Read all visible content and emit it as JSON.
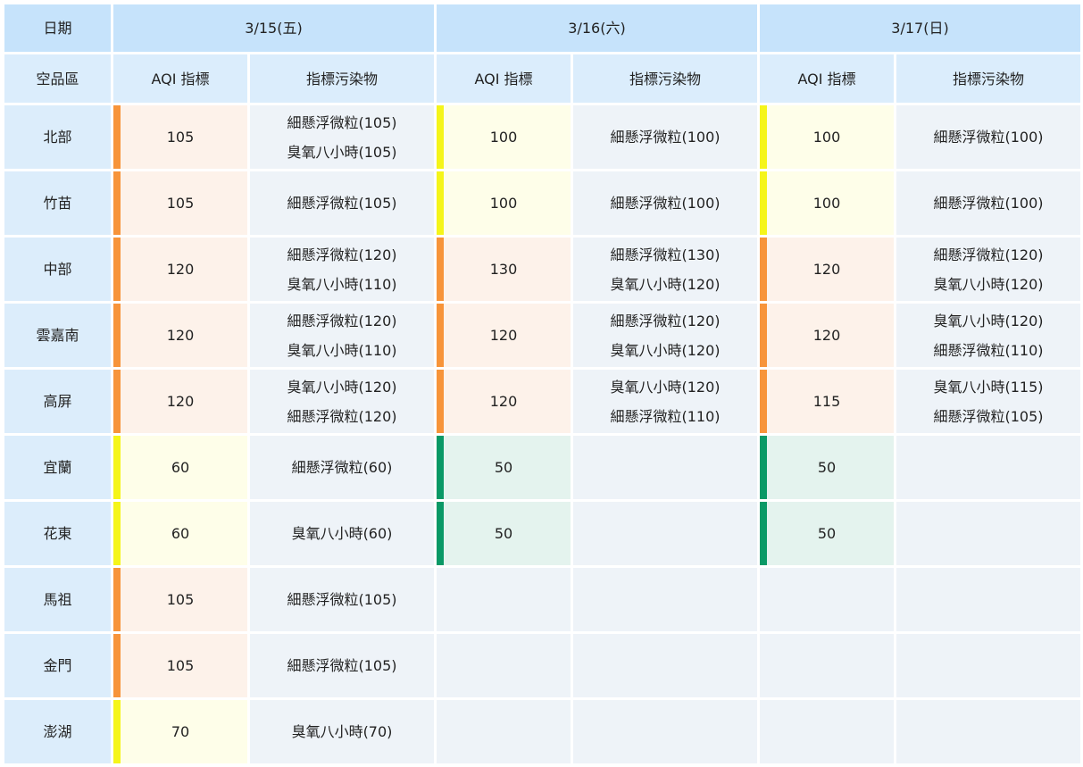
{
  "header": {
    "date_label": "日期",
    "region_label": "空品區",
    "aqi_label": "AQI 指標",
    "pollutant_label": "指標污染物",
    "dates": [
      "3/15(五)",
      "3/16(六)",
      "3/17(日)"
    ]
  },
  "levels": {
    "orange": {
      "bar": "#f7943a",
      "bg": "#fdf2ea"
    },
    "yellow": {
      "bar": "#f5f51a",
      "bg": "#fefee9"
    },
    "green": {
      "bar": "#0a9966",
      "bg": "#e4f3ee"
    }
  },
  "rows": [
    {
      "region": "北部",
      "days": [
        {
          "aqi": "105",
          "level": "orange",
          "pollutants": [
            "細懸浮微粒(105)",
            "臭氧八小時(105)"
          ]
        },
        {
          "aqi": "100",
          "level": "yellow",
          "pollutants": [
            "細懸浮微粒(100)"
          ]
        },
        {
          "aqi": "100",
          "level": "yellow",
          "pollutants": [
            "細懸浮微粒(100)"
          ]
        }
      ]
    },
    {
      "region": "竹苗",
      "days": [
        {
          "aqi": "105",
          "level": "orange",
          "pollutants": [
            "細懸浮微粒(105)"
          ]
        },
        {
          "aqi": "100",
          "level": "yellow",
          "pollutants": [
            "細懸浮微粒(100)"
          ]
        },
        {
          "aqi": "100",
          "level": "yellow",
          "pollutants": [
            "細懸浮微粒(100)"
          ]
        }
      ]
    },
    {
      "region": "中部",
      "days": [
        {
          "aqi": "120",
          "level": "orange",
          "pollutants": [
            "細懸浮微粒(120)",
            "臭氧八小時(110)"
          ]
        },
        {
          "aqi": "130",
          "level": "orange",
          "pollutants": [
            "細懸浮微粒(130)",
            "臭氧八小時(120)"
          ]
        },
        {
          "aqi": "120",
          "level": "orange",
          "pollutants": [
            "細懸浮微粒(120)",
            "臭氧八小時(120)"
          ]
        }
      ]
    },
    {
      "region": "雲嘉南",
      "days": [
        {
          "aqi": "120",
          "level": "orange",
          "pollutants": [
            "細懸浮微粒(120)",
            "臭氧八小時(110)"
          ]
        },
        {
          "aqi": "120",
          "level": "orange",
          "pollutants": [
            "細懸浮微粒(120)",
            "臭氧八小時(120)"
          ]
        },
        {
          "aqi": "120",
          "level": "orange",
          "pollutants": [
            "臭氧八小時(120)",
            "細懸浮微粒(110)"
          ]
        }
      ]
    },
    {
      "region": "高屏",
      "days": [
        {
          "aqi": "120",
          "level": "orange",
          "pollutants": [
            "臭氧八小時(120)",
            "細懸浮微粒(120)"
          ]
        },
        {
          "aqi": "120",
          "level": "orange",
          "pollutants": [
            "臭氧八小時(120)",
            "細懸浮微粒(110)"
          ]
        },
        {
          "aqi": "115",
          "level": "orange",
          "pollutants": [
            "臭氧八小時(115)",
            "細懸浮微粒(105)"
          ]
        }
      ]
    },
    {
      "region": "宜蘭",
      "days": [
        {
          "aqi": "60",
          "level": "yellow",
          "pollutants": [
            "細懸浮微粒(60)"
          ]
        },
        {
          "aqi": "50",
          "level": "green",
          "pollutants": []
        },
        {
          "aqi": "50",
          "level": "green",
          "pollutants": []
        }
      ]
    },
    {
      "region": "花東",
      "days": [
        {
          "aqi": "60",
          "level": "yellow",
          "pollutants": [
            "臭氧八小時(60)"
          ]
        },
        {
          "aqi": "50",
          "level": "green",
          "pollutants": []
        },
        {
          "aqi": "50",
          "level": "green",
          "pollutants": []
        }
      ]
    },
    {
      "region": "馬祖",
      "days": [
        {
          "aqi": "105",
          "level": "orange",
          "pollutants": [
            "細懸浮微粒(105)"
          ]
        },
        null,
        null
      ]
    },
    {
      "region": "金門",
      "days": [
        {
          "aqi": "105",
          "level": "orange",
          "pollutants": [
            "細懸浮微粒(105)"
          ]
        },
        null,
        null
      ]
    },
    {
      "region": "澎湖",
      "days": [
        {
          "aqi": "70",
          "level": "yellow",
          "pollutants": [
            "臭氧八小時(70)"
          ]
        },
        null,
        null
      ]
    }
  ]
}
